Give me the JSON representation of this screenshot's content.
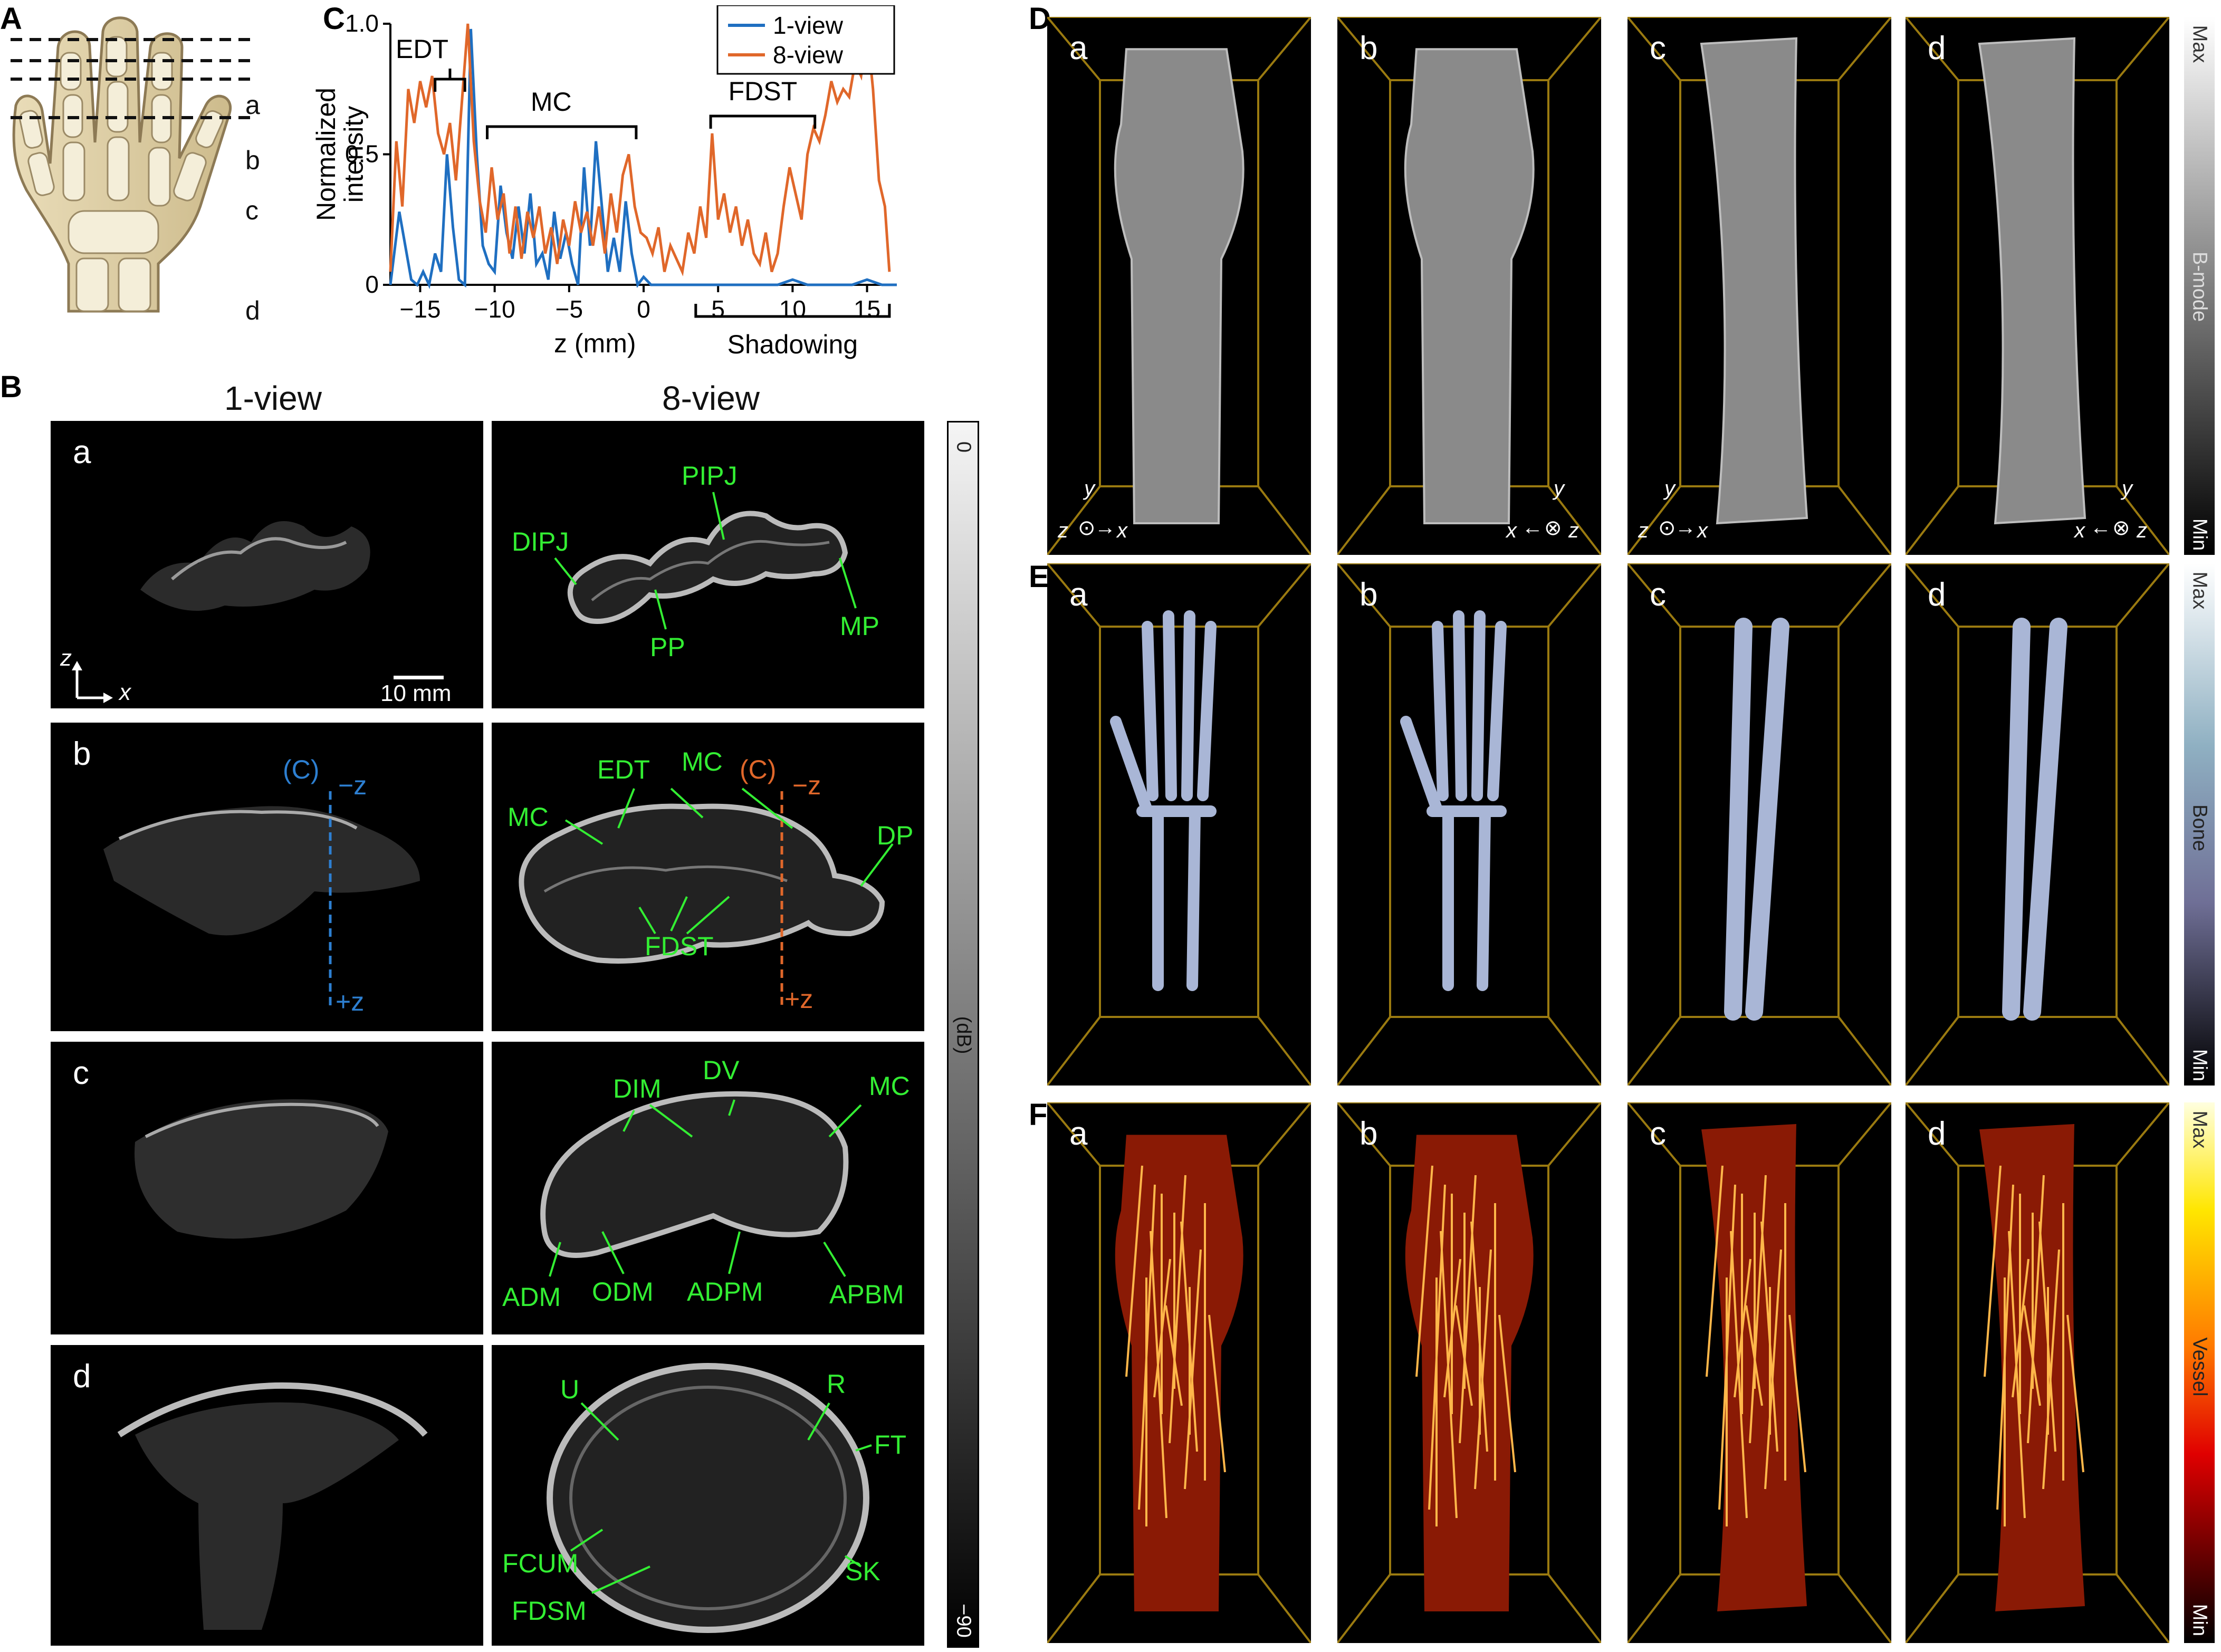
{
  "panels": {
    "A": {
      "label": "A",
      "rows": [
        "a",
        "b",
        "c",
        "d"
      ]
    },
    "B": {
      "label": "B",
      "col_headers": [
        "1-view",
        "8-view"
      ],
      "rows": [
        {
          "letter": "a",
          "labels8": [
            "PIPJ",
            "DIPJ",
            "PP",
            "MP"
          ]
        },
        {
          "letter": "b",
          "labels1": [
            "(C)",
            "−z",
            "+z"
          ],
          "labels8": [
            "EDT",
            "MC",
            "(C)",
            "−z",
            "MC",
            "DP",
            "FDST",
            "+z"
          ]
        },
        {
          "letter": "c",
          "labels8": [
            "DIM",
            "DV",
            "MC",
            "ADM",
            "ODM",
            "ADPM",
            "APBM"
          ]
        },
        {
          "letter": "d",
          "labels8": [
            "U",
            "R",
            "FT",
            "FCUM",
            "FDSM",
            "SK"
          ]
        }
      ],
      "axis_z": "z",
      "axis_x": "x",
      "scale": "10 mm",
      "colorbar": {
        "top": "0",
        "mid": "(dB)",
        "bottom": "−90"
      }
    },
    "C": {
      "label": "C"
    },
    "D": {
      "label": "D",
      "cols": [
        "a",
        "b",
        "c",
        "d"
      ],
      "cbar": {
        "top": "Max",
        "mid": "B-mode",
        "bottom": "Min"
      },
      "axes": [
        [
          "y",
          "z",
          "x"
        ],
        [
          "y",
          "x",
          "z"
        ],
        [
          "y",
          "z",
          "x"
        ],
        [
          "y",
          "x",
          "z"
        ]
      ]
    },
    "E": {
      "label": "E",
      "cols": [
        "a",
        "b",
        "c",
        "d"
      ],
      "cbar": {
        "top": "Max",
        "mid": "Bone",
        "bottom": "Min"
      }
    },
    "F": {
      "label": "F",
      "cols": [
        "a",
        "b",
        "c",
        "d"
      ],
      "cbar": {
        "top": "Max",
        "mid": "Vessel",
        "bottom": "Min"
      }
    }
  },
  "chart_data": {
    "type": "line",
    "xlabel": "z (mm)",
    "ylabel": "Normalized intensity",
    "xlim": [
      -17,
      17
    ],
    "ylim": [
      0,
      1
    ],
    "xticks": [
      -15,
      -10,
      -5,
      0,
      5,
      10,
      15
    ],
    "yticks": [
      0,
      0.5,
      1.0
    ],
    "ytick_labels": [
      "0",
      "0.5",
      "1.0"
    ],
    "legend": "top-right",
    "series": [
      {
        "name": "1-view",
        "color": "#1f6fc1",
        "x": [
          -17,
          -16.4,
          -16,
          -15.6,
          -15.2,
          -14.8,
          -14.4,
          -14,
          -13.6,
          -13.2,
          -12.8,
          -12.4,
          -12,
          -11.6,
          -11.2,
          -10.8,
          -10.4,
          -10,
          -9.6,
          -9.2,
          -8.8,
          -8.4,
          -8,
          -7.6,
          -7.2,
          -6.8,
          -6.4,
          -6,
          -5.6,
          -5.2,
          -4.8,
          -4.4,
          -4,
          -3.6,
          -3.2,
          -2.8,
          -2.4,
          -2,
          -1.6,
          -1.2,
          -0.8,
          -0.4,
          0,
          0.5,
          1,
          2,
          3,
          4,
          5,
          6,
          7,
          8,
          9,
          10,
          11,
          12,
          13,
          14,
          15,
          16,
          17
        ],
        "y": [
          0,
          0.28,
          0.15,
          0.02,
          0.0,
          0.05,
          0.0,
          0.12,
          0.05,
          0.5,
          0.22,
          0.02,
          0.0,
          0.98,
          0.5,
          0.15,
          0.08,
          0.05,
          0.38,
          0.2,
          0.1,
          0.3,
          0.12,
          0.35,
          0.08,
          0.12,
          0.02,
          0.28,
          0.1,
          0.2,
          0.08,
          0.0,
          0.45,
          0.15,
          0.55,
          0.3,
          0.05,
          0.18,
          0.05,
          0.32,
          0.12,
          0.0,
          0.03,
          0.0,
          0.0,
          0.0,
          0.0,
          0.0,
          0.0,
          0.0,
          0.0,
          0.0,
          0.0,
          0.02,
          0.0,
          0.0,
          0.0,
          0.0,
          0.02,
          0.0,
          0.0
        ]
      },
      {
        "name": "8-view",
        "color": "#e0672a",
        "x": [
          -17,
          -16.6,
          -16.2,
          -15.8,
          -15.4,
          -15,
          -14.6,
          -14.2,
          -13.8,
          -13.4,
          -13,
          -12.6,
          -12.2,
          -11.8,
          -11.4,
          -11,
          -10.6,
          -10.2,
          -9.8,
          -9.4,
          -9,
          -8.6,
          -8.2,
          -7.8,
          -7.4,
          -7,
          -6.6,
          -6.2,
          -5.8,
          -5.4,
          -5,
          -4.6,
          -4.2,
          -3.8,
          -3.4,
          -3,
          -2.6,
          -2.2,
          -1.8,
          -1.4,
          -1,
          -0.6,
          -0.2,
          0.2,
          0.6,
          1,
          1.4,
          1.8,
          2.2,
          2.6,
          3,
          3.4,
          3.8,
          4.2,
          4.6,
          5,
          5.4,
          5.8,
          6.2,
          6.6,
          7,
          7.4,
          7.8,
          8.2,
          8.6,
          9,
          9.4,
          9.8,
          10.2,
          10.6,
          11,
          11.4,
          11.8,
          12.2,
          12.6,
          13,
          13.4,
          13.8,
          14.2,
          14.6,
          15,
          15.4,
          15.8,
          16.2,
          16.5
        ],
        "y": [
          0.05,
          0.55,
          0.3,
          0.75,
          0.62,
          0.78,
          0.68,
          0.8,
          0.58,
          0.5,
          0.62,
          0.4,
          0.7,
          1.0,
          0.55,
          0.32,
          0.2,
          0.45,
          0.25,
          0.35,
          0.12,
          0.3,
          0.1,
          0.28,
          0.18,
          0.3,
          0.12,
          0.22,
          0.08,
          0.25,
          0.15,
          0.32,
          0.2,
          0.28,
          0.15,
          0.3,
          0.12,
          0.35,
          0.2,
          0.42,
          0.5,
          0.3,
          0.2,
          0.18,
          0.12,
          0.22,
          0.05,
          0.15,
          0.1,
          0.05,
          0.2,
          0.12,
          0.3,
          0.18,
          0.58,
          0.25,
          0.35,
          0.2,
          0.3,
          0.15,
          0.25,
          0.12,
          0.08,
          0.2,
          0.05,
          0.12,
          0.3,
          0.45,
          0.35,
          0.25,
          0.5,
          0.6,
          0.55,
          0.65,
          0.78,
          0.7,
          0.75,
          0.72,
          0.85,
          0.8,
          0.98,
          0.75,
          0.4,
          0.3,
          0.05
        ]
      }
    ],
    "annotations": [
      {
        "text": "EDT",
        "x": [
          -14,
          -12
        ]
      },
      {
        "text": "MC",
        "x": [
          -10.5,
          -0.5
        ]
      },
      {
        "text": "FDST",
        "x": [
          4.5,
          11.5
        ]
      },
      {
        "text": "Shadowing",
        "x": [
          3.5,
          16.5
        ]
      }
    ]
  }
}
